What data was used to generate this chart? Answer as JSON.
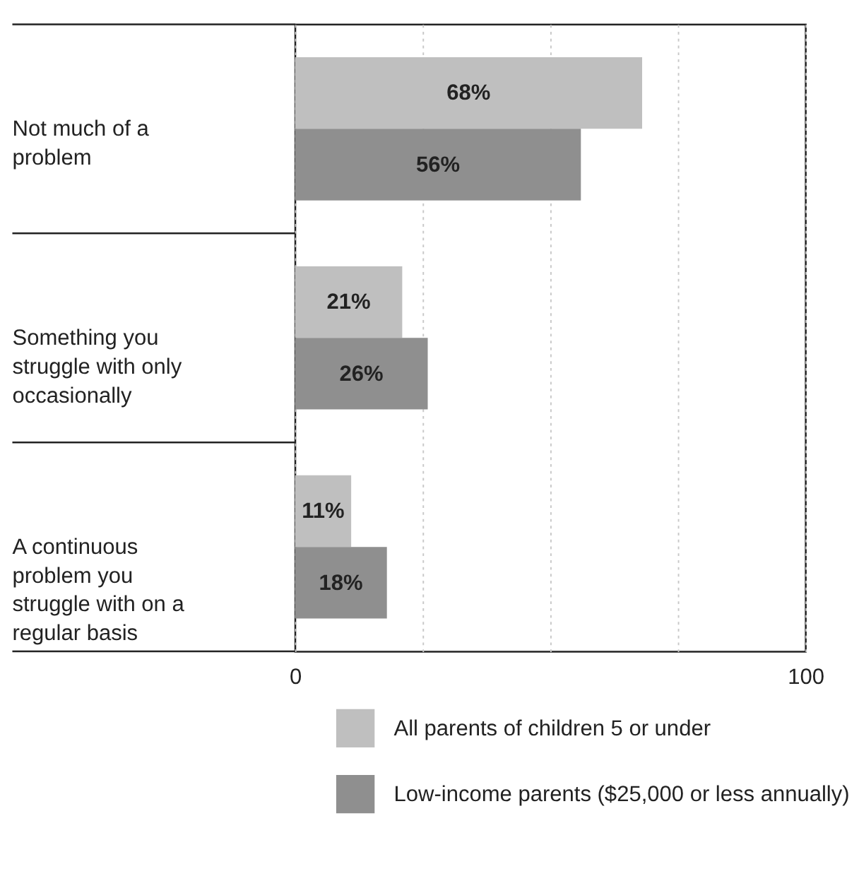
{
  "chart_data": {
    "type": "bar",
    "orientation": "horizontal",
    "categories": [
      "Not much of a problem",
      "Something you struggle with only occasionally",
      "A continuous problem you struggle with on a regular basis"
    ],
    "series": [
      {
        "name": "All parents of children 5 or under",
        "color": "#bfbfbf",
        "values": [
          68,
          21,
          11
        ],
        "value_labels": [
          "68%",
          "21%",
          "11%"
        ]
      },
      {
        "name": "Low-income parents ($25,000 or less annually)",
        "color": "#8f8f8f",
        "values": [
          56,
          26,
          18
        ],
        "value_labels": [
          "56%",
          "26%",
          "18%"
        ]
      }
    ],
    "xlim": [
      0,
      100
    ],
    "xticks": [
      0,
      {
        "value": 25,
        "label": null
      },
      {
        "value": 50,
        "label": null
      },
      {
        "value": 75,
        "label": null
      },
      100
    ],
    "grid": "x",
    "legend": "bottom"
  }
}
